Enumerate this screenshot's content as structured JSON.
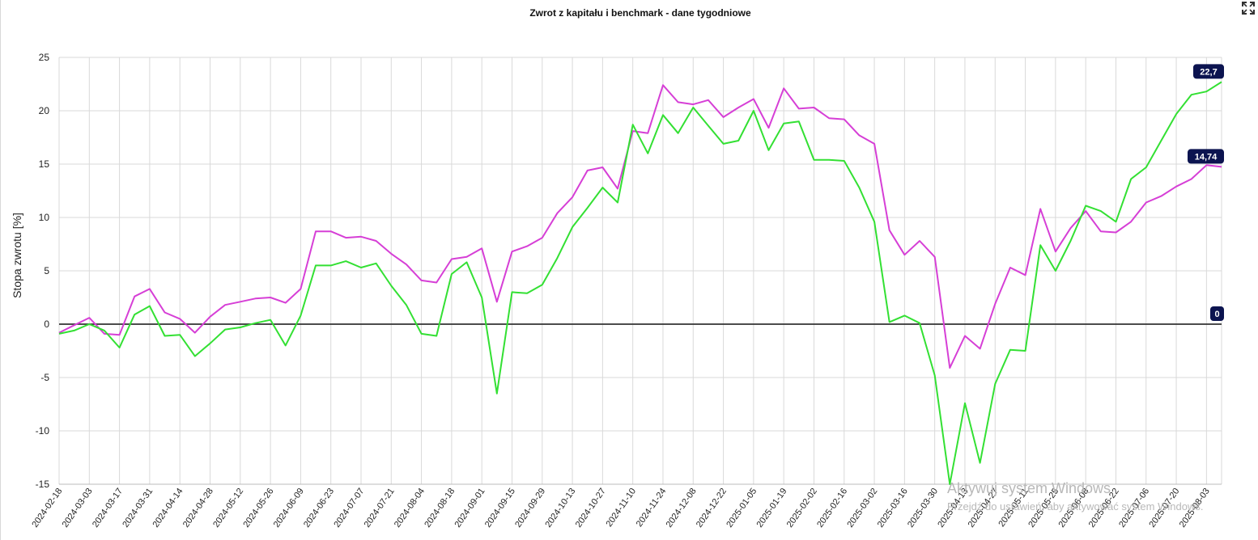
{
  "window": {
    "fullscreen_icon": "fullscreen-icon"
  },
  "watermark": {
    "line1": "Aktywuj system Windows",
    "line2": "Przejdź do ustawień, aby aktywować system Windows."
  },
  "colors": {
    "series_a": "#d63fd6",
    "series_b": "#33e033",
    "zero_line": "#333333",
    "badge": "#0c1450",
    "grid": "#d9d9d9"
  },
  "chart_data": {
    "type": "line",
    "title": "Zwrot z kapitału i benchmark - dane tygodniowe",
    "ylabel": "Stopa zwrotu [%]",
    "xlabel": "",
    "ylim": [
      -15,
      25
    ],
    "yticks": [
      25,
      20,
      15,
      10,
      5,
      0,
      -5,
      -10,
      -15
    ],
    "grid": true,
    "x": [
      "2024-02-18",
      "2024-02-25",
      "2024-03-03",
      "2024-03-10",
      "2024-03-17",
      "2024-03-24",
      "2024-03-31",
      "2024-04-07",
      "2024-04-14",
      "2024-04-21",
      "2024-04-28",
      "2024-05-05",
      "2024-05-12",
      "2024-05-19",
      "2024-05-26",
      "2024-06-02",
      "2024-06-09",
      "2024-06-16",
      "2024-06-23",
      "2024-06-30",
      "2024-07-07",
      "2024-07-14",
      "2024-07-21",
      "2024-07-28",
      "2024-08-04",
      "2024-08-11",
      "2024-08-18",
      "2024-08-25",
      "2024-09-01",
      "2024-09-08",
      "2024-09-15",
      "2024-09-22",
      "2024-09-29",
      "2024-10-06",
      "2024-10-13",
      "2024-10-20",
      "2024-10-27",
      "2024-11-03",
      "2024-11-10",
      "2024-11-17",
      "2024-11-24",
      "2024-12-01",
      "2024-12-08",
      "2024-12-15",
      "2024-12-22",
      "2024-12-29",
      "2025-01-05",
      "2025-01-12",
      "2025-01-19",
      "2025-01-26",
      "2025-02-02",
      "2025-02-09",
      "2025-02-16",
      "2025-02-23",
      "2025-03-02",
      "2025-03-09",
      "2025-03-16",
      "2025-03-23",
      "2025-03-30",
      "2025-04-06",
      "2025-04-13",
      "2025-04-20",
      "2025-04-27",
      "2025-05-04",
      "2025-05-11",
      "2025-05-18",
      "2025-05-25",
      "2025-06-01",
      "2025-06-08",
      "2025-06-15",
      "2025-06-22",
      "2025-06-29",
      "2025-07-06",
      "2025-07-13",
      "2025-07-20",
      "2025-07-27",
      "2025-08-03",
      "2025-08-10"
    ],
    "xtick_labels": [
      "2024-02-18",
      "2024-03-03",
      "2024-03-17",
      "2024-03-31",
      "2024-04-14",
      "2024-04-28",
      "2024-05-12",
      "2024-05-26",
      "2024-06-09",
      "2024-06-23",
      "2024-07-07",
      "2024-07-21",
      "2024-08-04",
      "2024-08-18",
      "2024-09-01",
      "2024-09-15",
      "2024-09-29",
      "2024-10-13",
      "2024-10-27",
      "2024-11-10",
      "2024-11-24",
      "2024-12-08",
      "2024-12-22",
      "2025-01-05",
      "2025-01-19",
      "2025-02-02",
      "2025-02-16",
      "2025-03-02",
      "2025-03-16",
      "2025-03-30",
      "2025-04-13",
      "2025-04-27",
      "2025-05-11",
      "2025-05-25",
      "2025-06-08",
      "2025-06-22",
      "2025-07-06",
      "2025-07-20",
      "2025-08-03"
    ],
    "series": [
      {
        "color": "#d63fd6",
        "end_label": "14,74",
        "values": [
          -0.8,
          -0.1,
          0.6,
          -0.9,
          -1.0,
          2.6,
          3.3,
          1.1,
          0.5,
          -0.8,
          0.7,
          1.8,
          2.1,
          2.4,
          2.5,
          2.0,
          3.3,
          8.7,
          8.7,
          8.1,
          8.2,
          7.8,
          6.6,
          5.6,
          4.1,
          3.9,
          6.1,
          6.3,
          7.1,
          2.1,
          6.8,
          7.3,
          8.1,
          10.4,
          11.9,
          14.4,
          14.7,
          12.7,
          18.1,
          17.9,
          22.4,
          20.8,
          20.6,
          21.0,
          19.4,
          20.3,
          21.1,
          18.4,
          22.1,
          20.2,
          20.3,
          19.3,
          19.2,
          17.7,
          16.9,
          8.8,
          6.5,
          7.8,
          6.3,
          -4.1,
          -1.1,
          -2.3,
          1.9,
          5.3,
          4.6,
          10.8,
          6.8,
          9.0,
          10.6,
          8.7,
          8.6,
          9.6,
          11.4,
          12.0,
          12.9,
          13.6,
          14.9,
          14.74
        ]
      },
      {
        "color": "#33e033",
        "end_label": "22,7",
        "values": [
          -0.9,
          -0.6,
          0.0,
          -0.6,
          -2.2,
          0.9,
          1.7,
          -1.1,
          -1.0,
          -3.0,
          -1.8,
          -0.5,
          -0.3,
          0.1,
          0.4,
          -2.0,
          0.8,
          5.5,
          5.5,
          5.9,
          5.3,
          5.7,
          3.6,
          1.8,
          -0.9,
          -1.1,
          4.7,
          5.8,
          2.5,
          -6.5,
          3.0,
          2.9,
          3.7,
          6.2,
          9.1,
          10.9,
          12.8,
          11.4,
          18.7,
          16.0,
          19.6,
          17.9,
          20.3,
          18.6,
          16.9,
          17.2,
          20.0,
          16.3,
          18.8,
          19.0,
          15.4,
          15.4,
          15.3,
          12.8,
          9.6,
          0.2,
          0.8,
          0.1,
          -4.8,
          -15.0,
          -7.4,
          -13.0,
          -5.6,
          -2.4,
          -2.5,
          7.4,
          5.0,
          7.8,
          11.1,
          10.6,
          9.6,
          13.6,
          14.7,
          17.2,
          19.7,
          21.5,
          21.8,
          22.7
        ]
      },
      {
        "color": "#333333",
        "end_label": "0",
        "values": [
          0,
          0,
          0,
          0,
          0,
          0,
          0,
          0,
          0,
          0,
          0,
          0,
          0,
          0,
          0,
          0,
          0,
          0,
          0,
          0,
          0,
          0,
          0,
          0,
          0,
          0,
          0,
          0,
          0,
          0,
          0,
          0,
          0,
          0,
          0,
          0,
          0,
          0,
          0,
          0,
          0,
          0,
          0,
          0,
          0,
          0,
          0,
          0,
          0,
          0,
          0,
          0,
          0,
          0,
          0,
          0,
          0,
          0,
          0,
          0,
          0,
          0,
          0,
          0,
          0,
          0,
          0,
          0,
          0,
          0,
          0,
          0,
          0,
          0,
          0,
          0,
          0,
          0
        ]
      }
    ]
  }
}
